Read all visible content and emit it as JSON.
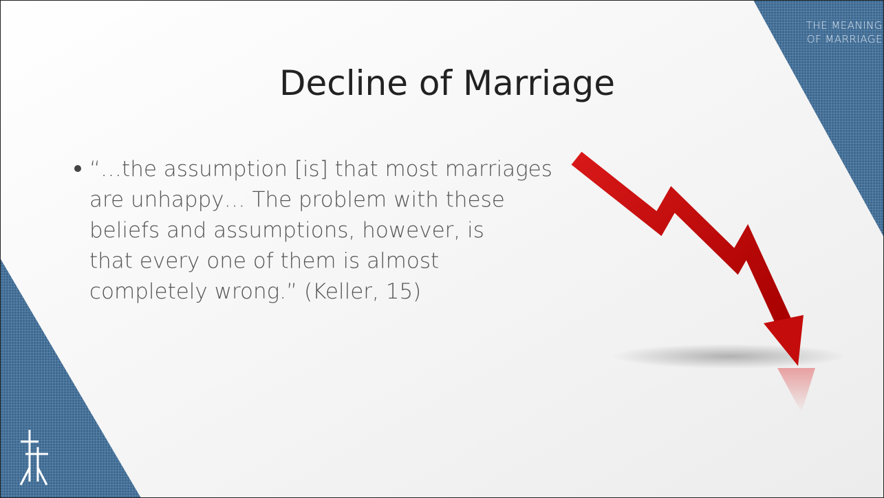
{
  "corner_tag": {
    "lines": [
      "THE MEANING",
      "OF MARRIAGE"
    ]
  },
  "title": "Decline of Marriage",
  "bullet": {
    "lines": [
      "“…the assumption [is] that most marriages",
      "are unhappy… The problem with these",
      "beliefs and assumptions, however, is",
      "that every one of them is almost",
      "completely wrong.”  (Keller, 15)"
    ]
  }
}
